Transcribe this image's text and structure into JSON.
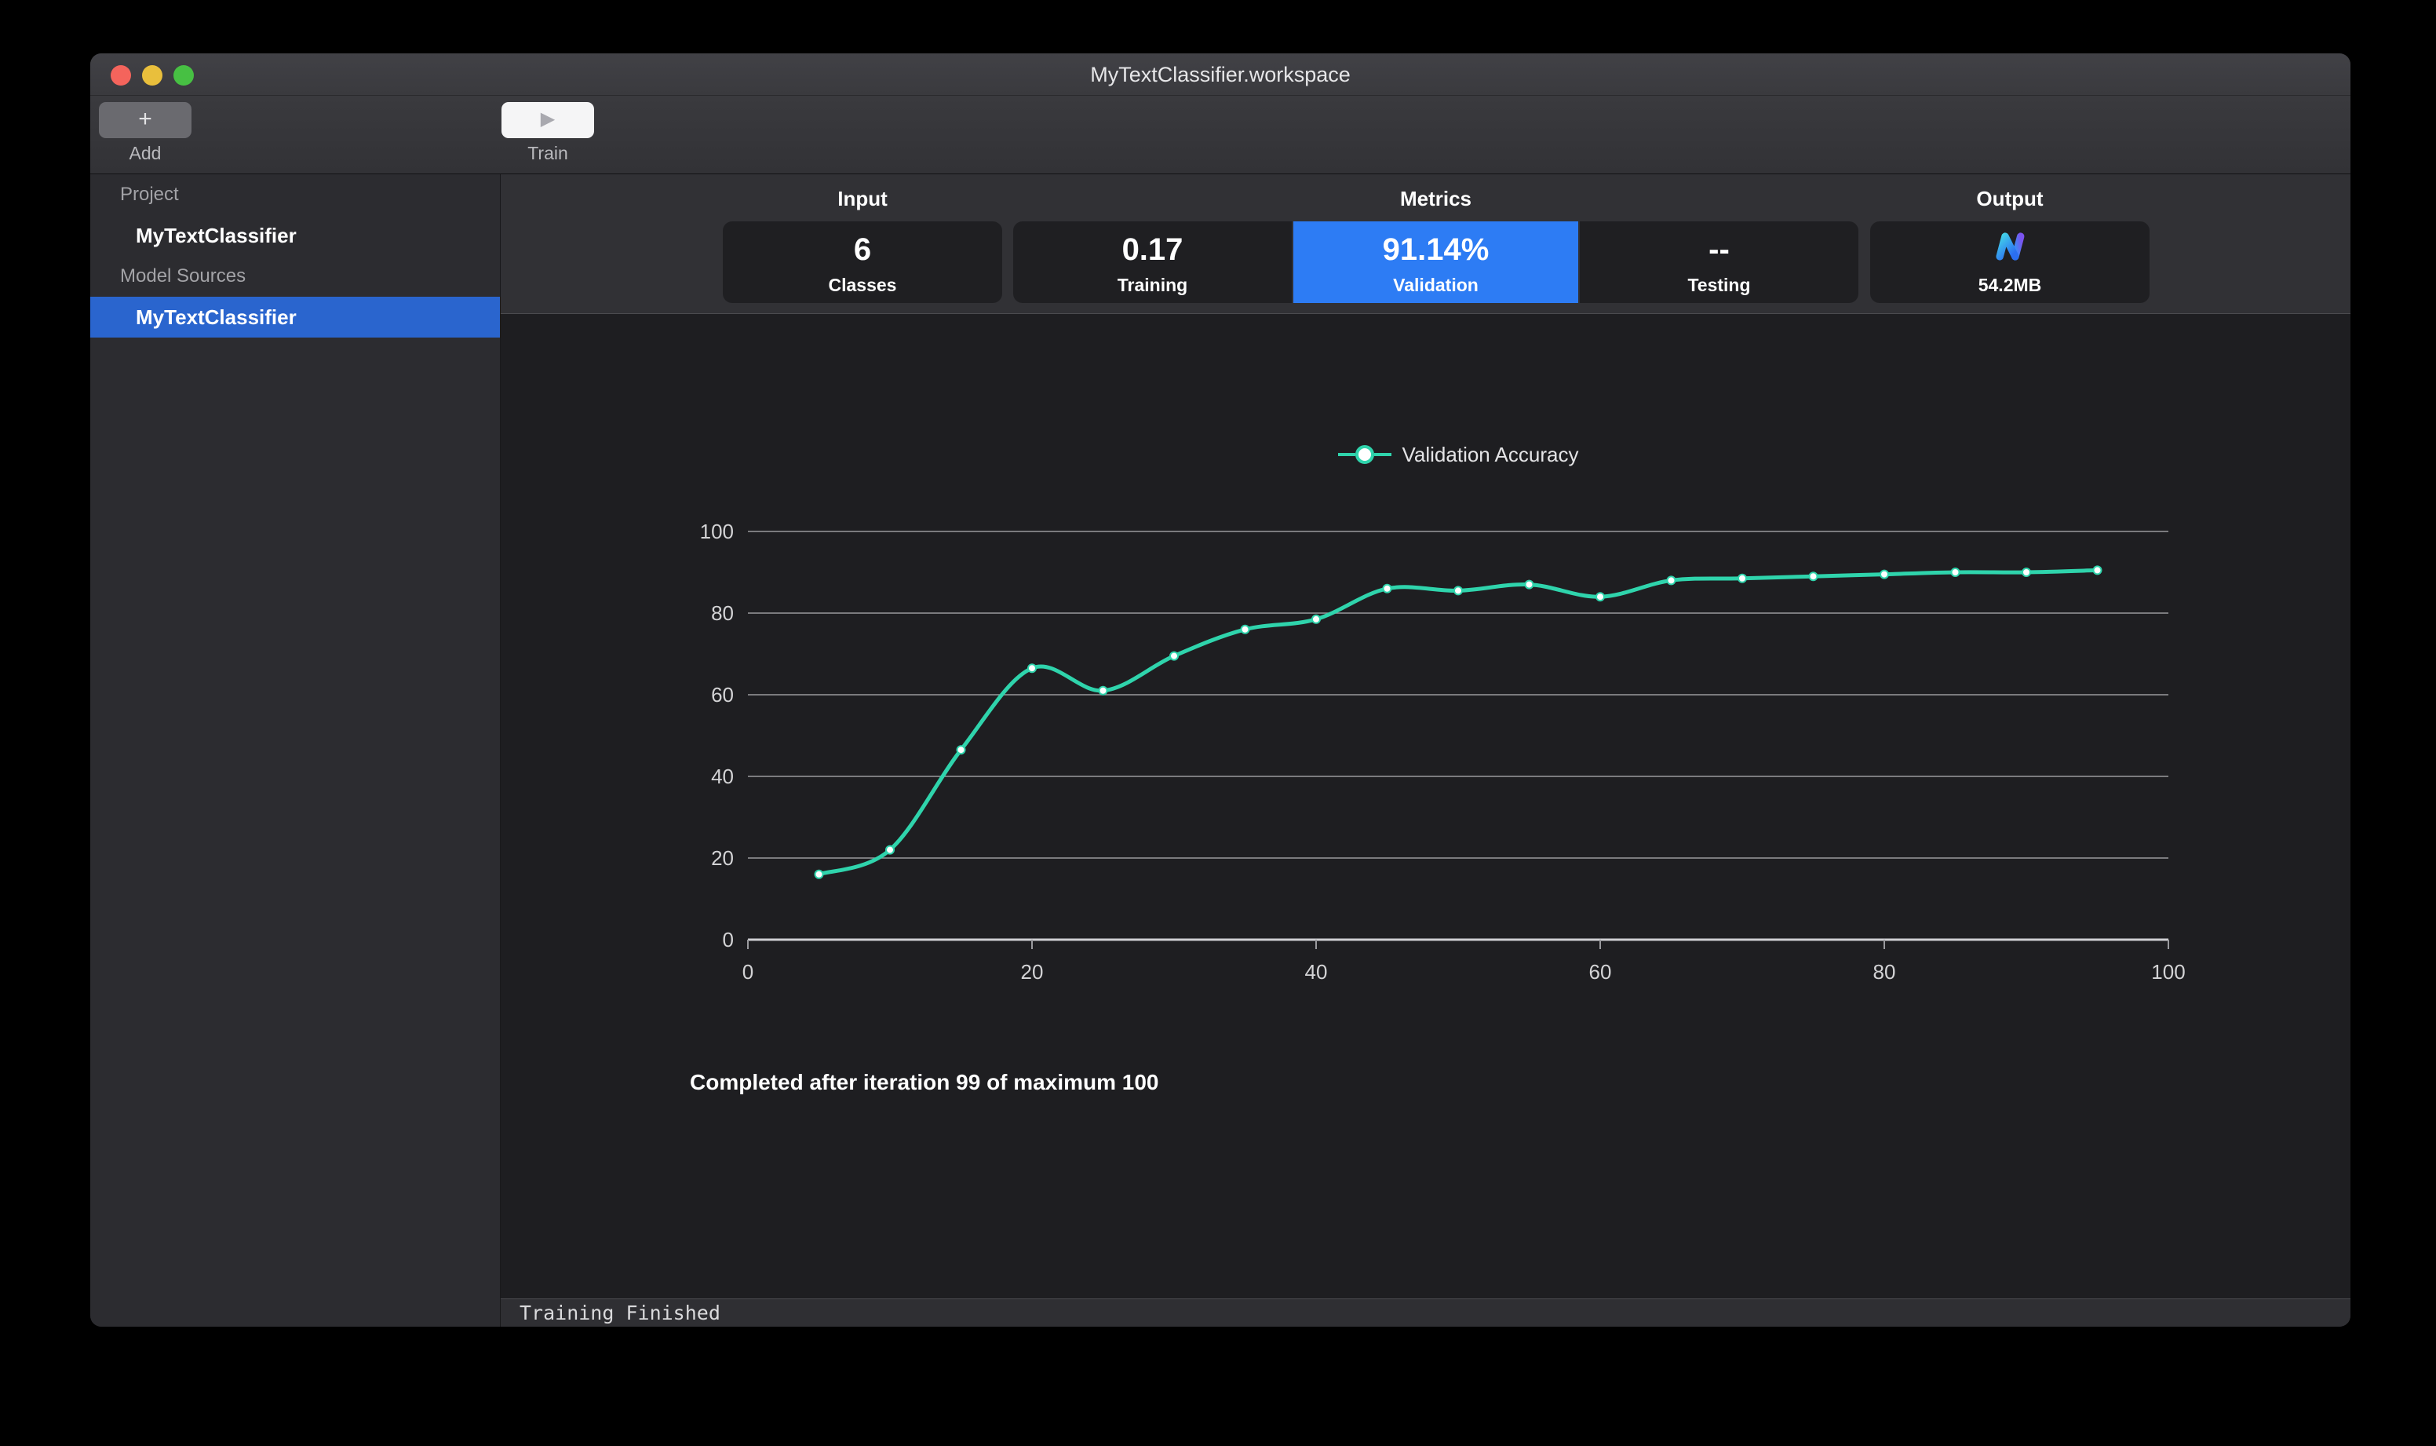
{
  "window": {
    "title": "MyTextClassifier.workspace"
  },
  "toolbar": {
    "add_label": "Add",
    "add_glyph": "+",
    "train_label": "Train",
    "train_glyph": "▶"
  },
  "sidebar": {
    "sections": [
      {
        "header": "Project",
        "items": [
          {
            "label": "MyTextClassifier",
            "selected": false
          }
        ]
      },
      {
        "header": "Model Sources",
        "items": [
          {
            "label": "MyTextClassifier",
            "selected": true
          }
        ]
      }
    ]
  },
  "metrics": {
    "groups": [
      {
        "header": "Input",
        "cards": [
          {
            "value": "6",
            "label": "Classes"
          }
        ]
      },
      {
        "header": "Metrics",
        "cards": [
          {
            "value": "0.17",
            "label": "Training"
          },
          {
            "value": "91.14%",
            "label": "Validation",
            "highlighted": true
          },
          {
            "value": "--",
            "label": "Testing"
          }
        ]
      },
      {
        "header": "Output",
        "cards": [
          {
            "value": "54.2MB",
            "label": "",
            "icon": "mlmodel-icon"
          }
        ]
      }
    ],
    "highlight_color": "#2d7cf4"
  },
  "chart_data": {
    "type": "line",
    "title": "",
    "xlabel": "",
    "ylabel": "",
    "xlim": [
      0,
      100
    ],
    "ylim": [
      0,
      100
    ],
    "x_ticks": [
      0,
      20,
      40,
      60,
      80,
      100
    ],
    "y_ticks": [
      0,
      20,
      40,
      60,
      80,
      100
    ],
    "grid": "horizontal",
    "legend_position": "top-center",
    "series": [
      {
        "name": "Validation Accuracy",
        "color": "#2fd4ac",
        "marker": "white-dot",
        "x": [
          5,
          10,
          15,
          20,
          25,
          30,
          35,
          40,
          45,
          50,
          55,
          60,
          65,
          70,
          75,
          80,
          85,
          90,
          95
        ],
        "y": [
          16,
          22,
          46.5,
          66.5,
          61,
          69.5,
          76,
          78.5,
          86,
          85.5,
          87,
          84,
          88,
          88.5,
          89,
          89.5,
          90,
          90,
          90.5
        ]
      }
    ],
    "annotation": "Completed after iteration 99 of maximum 100"
  },
  "status_bar": {
    "message": "Training Finished"
  }
}
